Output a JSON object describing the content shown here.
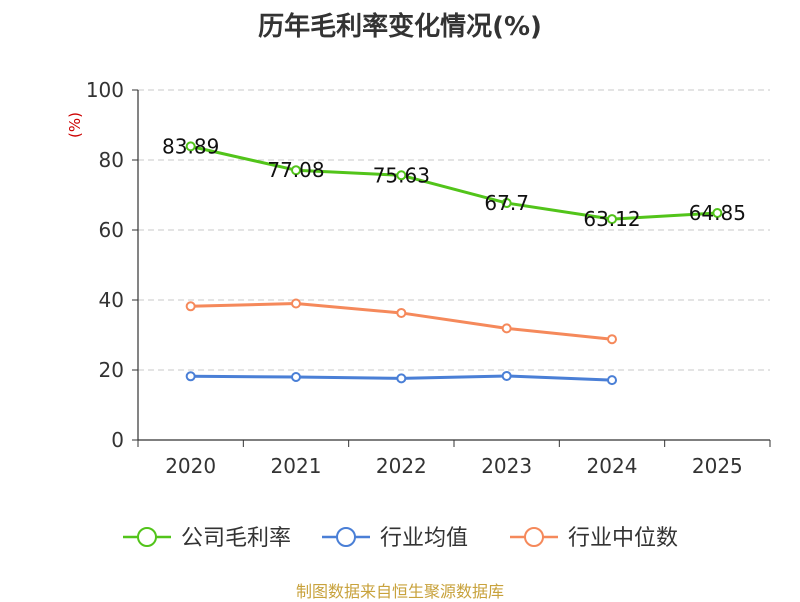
{
  "chart_data": {
    "type": "line",
    "title": "历年毛利率变化情况(%)",
    "ylabel": "(%)",
    "xlabel": "",
    "ylim": [
      0,
      100
    ],
    "yticks": [
      0,
      20,
      40,
      60,
      80,
      100
    ],
    "grid": true,
    "legend_position": "bottom",
    "categories": [
      "2020",
      "2021",
      "2022",
      "2023",
      "2024",
      "2025"
    ],
    "series": [
      {
        "name": "公司毛利率",
        "color": "#52c41a",
        "values": [
          83.89,
          77.08,
          75.63,
          67.7,
          63.12,
          64.85
        ],
        "labels": [
          "83.89",
          "77.08",
          "75.63",
          "67.7",
          "63.12",
          "64.85"
        ]
      },
      {
        "name": "行业均值",
        "color": "#4a7fd6",
        "values": [
          18.2,
          18.0,
          17.6,
          18.3,
          17.1,
          null
        ]
      },
      {
        "name": "行业中位数",
        "color": "#f5895b",
        "values": [
          38.2,
          39.0,
          36.3,
          31.9,
          28.8,
          null
        ]
      }
    ]
  },
  "source_note": "制图数据来自恒生聚源数据库"
}
